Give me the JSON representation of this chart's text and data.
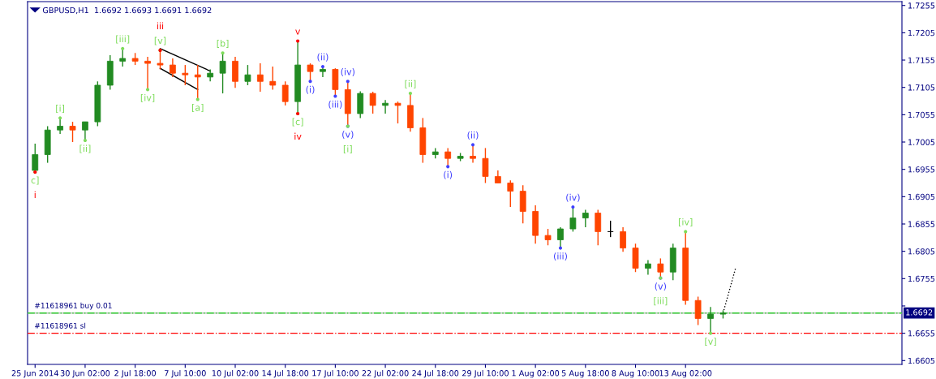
{
  "chart_data": {
    "type": "candlestick",
    "title": "GBPUSD,H1  1.6692 1.6693 1.6691 1.6692",
    "categories": [
      "25 Jun 2014",
      null,
      null,
      null,
      "30 Jun 02:00",
      null,
      null,
      null,
      "2 Jul 18:00",
      null,
      null,
      null,
      "7 Jul 10:00",
      null,
      null,
      null,
      "10 Jul 02:00",
      null,
      null,
      null,
      "14 Jul 18:00",
      null,
      null,
      null,
      "17 Jul 10:00",
      null,
      null,
      null,
      "22 Jul 02:00",
      null,
      null,
      null,
      "24 Jul 18:00",
      null,
      null,
      null,
      "29 Jul 10:00",
      null,
      null,
      null,
      "1 Aug 02:00",
      null,
      null,
      null,
      "5 Aug 18:00",
      null,
      null,
      null,
      "8 Aug 10:00",
      null,
      null,
      null,
      "13 Aug 02:00",
      null,
      null,
      null,
      null,
      null,
      null,
      null,
      null,
      null,
      null,
      null,
      null,
      null,
      null,
      null,
      null,
      null
    ],
    "ohlc": [
      [
        1.6953,
        1.7002,
        1.695,
        1.6982
      ],
      [
        1.6982,
        1.7034,
        1.6967,
        1.7027
      ],
      [
        1.7027,
        1.7049,
        1.702,
        1.7034
      ],
      [
        1.7034,
        1.7042,
        1.7005,
        1.7027
      ],
      [
        1.7027,
        1.7042,
        1.7008,
        1.7042
      ],
      [
        1.7042,
        1.7116,
        1.7034,
        1.7109
      ],
      [
        1.7109,
        1.7164,
        1.7101,
        1.7153
      ],
      [
        1.7153,
        1.7176,
        1.7143,
        1.7158
      ],
      [
        1.7158,
        1.7168,
        1.7146,
        1.7153
      ],
      [
        1.7153,
        1.7161,
        1.7101,
        1.7149
      ],
      [
        1.7149,
        1.7173,
        1.7138,
        1.7146
      ],
      [
        1.7146,
        1.7158,
        1.7124,
        1.7131
      ],
      [
        1.7131,
        1.7146,
        1.7109,
        1.7128
      ],
      [
        1.7128,
        1.7146,
        1.7083,
        1.7124
      ],
      [
        1.7124,
        1.7138,
        1.7116,
        1.7131
      ],
      [
        1.7131,
        1.7168,
        1.7094,
        1.7153
      ],
      [
        1.7153,
        1.7161,
        1.7104,
        1.7116
      ],
      [
        1.7116,
        1.7146,
        1.7109,
        1.7128
      ],
      [
        1.7128,
        1.7149,
        1.7097,
        1.7116
      ],
      [
        1.7116,
        1.7143,
        1.7101,
        1.7109
      ],
      [
        1.7109,
        1.7116,
        1.7072,
        1.7079
      ],
      [
        1.7079,
        1.719,
        1.7057,
        1.7146
      ],
      [
        1.7146,
        1.7149,
        1.7116,
        1.7134
      ],
      [
        1.7134,
        1.7143,
        1.7124,
        1.7138
      ],
      [
        1.7138,
        1.714,
        1.7089,
        1.7101
      ],
      [
        1.7101,
        1.7116,
        1.7034,
        1.7057
      ],
      [
        1.7057,
        1.7098,
        1.7049,
        1.7094
      ],
      [
        1.7094,
        1.7097,
        1.7057,
        1.7072
      ],
      [
        1.7072,
        1.7082,
        1.7057,
        1.7076
      ],
      [
        1.7076,
        1.7079,
        1.7039,
        1.7072
      ],
      [
        1.7072,
        1.7094,
        1.7024,
        1.7031
      ],
      [
        1.7031,
        1.7049,
        1.6967,
        1.6982
      ],
      [
        1.6982,
        1.6994,
        1.6975,
        1.6987
      ],
      [
        1.6987,
        1.6994,
        1.696,
        1.6975
      ],
      [
        1.6975,
        1.6985,
        1.697,
        1.6979
      ],
      [
        1.6979,
        1.7,
        1.6967,
        1.6975
      ],
      [
        1.6975,
        1.6994,
        1.693,
        1.6942
      ],
      [
        1.6942,
        1.6953,
        1.693,
        1.693
      ],
      [
        1.693,
        1.6935,
        1.6886,
        1.6915
      ],
      [
        1.6915,
        1.6926,
        1.6856,
        1.6878
      ],
      [
        1.6878,
        1.6889,
        1.6819,
        1.6834
      ],
      [
        1.6834,
        1.6846,
        1.6816,
        1.6826
      ],
      [
        1.6826,
        1.6849,
        1.6811,
        1.6846
      ],
      [
        1.6846,
        1.6886,
        1.6841,
        1.6866
      ],
      [
        1.6866,
        1.6881,
        1.6849,
        1.6875
      ],
      [
        1.6875,
        1.6881,
        1.6816,
        1.6841
      ],
      [
        1.6841,
        1.6861,
        1.6831,
        1.6841
      ],
      [
        1.6841,
        1.6849,
        1.6804,
        1.6811
      ],
      [
        1.6811,
        1.6819,
        1.6767,
        1.6774
      ],
      [
        1.6774,
        1.6789,
        1.6762,
        1.6782
      ],
      [
        1.6782,
        1.6792,
        1.6756,
        1.6767
      ],
      [
        1.6767,
        1.6819,
        1.6752,
        1.6811
      ],
      [
        1.6811,
        1.6841,
        1.6707,
        1.6715
      ],
      [
        1.6715,
        1.6722,
        1.667,
        1.6682
      ],
      [
        1.6682,
        1.6703,
        1.6655,
        1.669
      ],
      [
        1.669,
        1.6697,
        1.6682,
        1.6692
      ],
      null,
      null,
      null,
      null,
      null,
      null,
      null,
      null,
      null,
      null,
      null,
      null,
      null,
      null
    ],
    "colors": [
      "#228b22",
      "#228b22",
      "#228b22",
      "#ff4500",
      "#228b22",
      "#228b22",
      "#228b22",
      "#228b22",
      "#ff4500",
      "#ff4500",
      "#ff4500",
      "#ff4500",
      "#ff4500",
      "#ff4500",
      "#228b22",
      "#228b22",
      "#ff4500",
      "#228b22",
      "#ff4500",
      "#ff4500",
      "#ff4500",
      "#228b22",
      "#ff4500",
      "#228b22",
      "#ff4500",
      "#ff4500",
      "#228b22",
      "#ff4500",
      "#228b22",
      "#ff4500",
      "#ff4500",
      "#ff4500",
      "#228b22",
      "#ff4500",
      "#228b22",
      "#ff4500",
      "#ff4500",
      "#ff4500",
      "#ff4500",
      "#ff4500",
      "#ff4500",
      "#ff4500",
      "#228b22",
      "#228b22",
      "#228b22",
      "#ff4500",
      "#000000",
      "#ff4500",
      "#ff4500",
      "#228b22",
      "#ff4500",
      "#228b22",
      "#ff4500",
      "#ff4500",
      "#228b22",
      "#228b22",
      null,
      null,
      null,
      null,
      null,
      null,
      null,
      null,
      null,
      null,
      null,
      null,
      null,
      null
    ],
    "series": [
      {
        "type": "line",
        "color": "#000000",
        "line_style": "dotted",
        "values": [
          null,
          null,
          null,
          null,
          null,
          null,
          null,
          null,
          null,
          null,
          null,
          null,
          null,
          null,
          null,
          null,
          null,
          null,
          null,
          null,
          null,
          null,
          null,
          null,
          null,
          null,
          null,
          null,
          null,
          null,
          null,
          null,
          null,
          null,
          null,
          null,
          null,
          null,
          null,
          null,
          null,
          null,
          null,
          null,
          null,
          null,
          null,
          null,
          null,
          null,
          null,
          null,
          null,
          null,
          null,
          1.6692,
          1.6774,
          null,
          null,
          null,
          null,
          null,
          null,
          null,
          null,
          null,
          null,
          null,
          null,
          null
        ]
      },
      {
        "type": "line",
        "color": "#000000",
        "line_style": "solid",
        "values": [
          null,
          null,
          null,
          null,
          null,
          null,
          null,
          null,
          null,
          null,
          1.7176,
          null,
          null,
          null,
          1.7135,
          null,
          null,
          null,
          null,
          null,
          null,
          null,
          null,
          null,
          null,
          null,
          null,
          null,
          null,
          null,
          null,
          null,
          null,
          null,
          null,
          null,
          null,
          null,
          null,
          null,
          null,
          null,
          null,
          null,
          null,
          null,
          null,
          null,
          null,
          null,
          null,
          null,
          null,
          null,
          null,
          null,
          null,
          null,
          null,
          null,
          null,
          null,
          null,
          null,
          null,
          null,
          null,
          null,
          null,
          null
        ]
      },
      {
        "type": "line",
        "color": "#000000",
        "line_style": "solid",
        "values": [
          null,
          null,
          null,
          null,
          null,
          null,
          null,
          null,
          null,
          null,
          1.714,
          null,
          null,
          1.7101,
          null,
          null,
          null,
          null,
          null,
          null,
          null,
          null,
          null,
          null,
          null,
          null,
          null,
          null,
          null,
          null,
          null,
          null,
          null,
          null,
          null,
          null,
          null,
          null,
          null,
          null,
          null,
          null,
          null,
          null,
          null,
          null,
          null,
          null,
          null,
          null,
          null,
          null,
          null,
          null,
          null,
          null,
          null,
          null,
          null,
          null,
          null,
          null,
          null,
          null,
          null,
          null,
          null,
          null,
          null,
          null
        ]
      },
      {
        "type": "scatter",
        "marker": "circle",
        "color": "#4040ff",
        "values": [
          null,
          null,
          null,
          null,
          null,
          null,
          null,
          null,
          null,
          null,
          null,
          null,
          null,
          null,
          null,
          null,
          null,
          null,
          null,
          null,
          null,
          null,
          1.7116,
          null,
          1.7089,
          1.7034,
          null,
          null,
          null,
          null,
          null,
          null,
          null,
          1.696,
          null,
          null,
          null,
          null,
          null,
          null,
          null,
          null,
          1.6811,
          null,
          null,
          null,
          null,
          null,
          null,
          null,
          1.6756,
          null,
          null,
          null,
          null,
          null,
          null,
          null,
          null,
          null,
          null,
          null,
          null,
          null,
          null,
          null,
          null,
          null,
          null,
          null
        ],
        "value_labels": [
          null,
          null,
          null,
          null,
          null,
          null,
          null,
          null,
          null,
          null,
          null,
          null,
          null,
          null,
          null,
          null,
          null,
          null,
          null,
          null,
          null,
          null,
          "(i)",
          null,
          "(iii)",
          "(v)",
          null,
          null,
          null,
          null,
          null,
          null,
          null,
          "(i)",
          null,
          null,
          null,
          null,
          null,
          null,
          null,
          null,
          "(iii)",
          null,
          null,
          null,
          null,
          null,
          null,
          null,
          "(v)",
          null,
          null,
          null,
          null,
          null,
          null,
          null,
          null,
          null,
          null,
          null,
          null,
          null,
          null,
          null,
          null,
          null,
          null,
          null
        ]
      },
      {
        "type": "scatter",
        "marker": "circle",
        "color": "#4040ff",
        "values": [
          null,
          null,
          null,
          null,
          null,
          null,
          null,
          null,
          null,
          null,
          null,
          null,
          null,
          null,
          null,
          null,
          null,
          null,
          null,
          null,
          null,
          null,
          null,
          1.7143,
          null,
          1.7116,
          null,
          null,
          null,
          null,
          null,
          null,
          null,
          null,
          null,
          1.7,
          null,
          null,
          null,
          null,
          null,
          null,
          null,
          1.6886,
          null,
          null,
          null,
          null,
          null,
          null,
          null,
          null,
          null,
          null,
          null,
          null,
          null,
          null,
          null,
          null,
          null,
          null,
          null,
          null,
          null,
          null,
          null,
          null,
          null,
          null
        ],
        "value_labels": [
          null,
          null,
          null,
          null,
          null,
          null,
          null,
          null,
          null,
          null,
          null,
          null,
          null,
          null,
          null,
          null,
          null,
          null,
          null,
          null,
          null,
          null,
          null,
          "(ii)",
          null,
          "(iv)",
          null,
          null,
          null,
          null,
          null,
          null,
          null,
          null,
          null,
          "(ii)",
          null,
          null,
          null,
          null,
          null,
          null,
          null,
          "(iv)",
          null,
          null,
          null,
          null,
          null,
          null,
          null,
          null,
          null,
          null,
          null,
          null,
          null,
          null,
          null,
          null,
          null,
          null,
          null,
          null,
          null,
          null,
          null,
          null,
          null,
          null
        ]
      },
      {
        "type": "scatter",
        "marker": "circle",
        "color": "#7ddc5a",
        "values": [
          1.695,
          null,
          1.7049,
          null,
          1.7008,
          null,
          null,
          1.7176,
          null,
          1.7101,
          1.7173,
          null,
          null,
          1.7083,
          null,
          1.7168,
          null,
          null,
          null,
          null,
          null,
          1.7057,
          null,
          null,
          null,
          1.7034,
          null,
          null,
          null,
          null,
          1.7094,
          null,
          null,
          null,
          null,
          null,
          null,
          null,
          null,
          null,
          null,
          null,
          null,
          null,
          null,
          null,
          null,
          null,
          null,
          null,
          1.6756,
          null,
          1.6841,
          null,
          1.6655,
          null,
          null,
          null,
          null,
          null,
          null,
          null,
          null,
          null,
          null,
          null,
          null,
          null,
          null,
          null
        ],
        "value_labels": [
          "c]",
          null,
          "[i]",
          null,
          "[ii]",
          null,
          null,
          "[iii]",
          null,
          "[iv]",
          "[v]",
          null,
          null,
          "[a]",
          null,
          "[b]",
          null,
          null,
          null,
          null,
          null,
          "[c]",
          null,
          null,
          null,
          "[i]",
          null,
          null,
          null,
          null,
          "[ii]",
          null,
          null,
          null,
          null,
          null,
          null,
          null,
          null,
          null,
          null,
          null,
          null,
          null,
          null,
          null,
          null,
          null,
          null,
          null,
          "[iii]",
          null,
          "[iv]",
          null,
          "[v]",
          null,
          null,
          null,
          null,
          null,
          null,
          null,
          null,
          null,
          null,
          null,
          null,
          null,
          null,
          null
        ]
      },
      {
        "type": "scatter",
        "marker": "circle",
        "color": "#ff0000",
        "values": [
          null,
          null,
          null,
          null,
          null,
          null,
          null,
          null,
          null,
          null,
          1.7173,
          null,
          null,
          null,
          null,
          null,
          null,
          null,
          null,
          null,
          null,
          1.719,
          null,
          null,
          null,
          null,
          null,
          null,
          null,
          null,
          null,
          null,
          null,
          null,
          null,
          null,
          null,
          null,
          null,
          null,
          null,
          null,
          null,
          null,
          null,
          null,
          null,
          null,
          null,
          null,
          null,
          null,
          null,
          null,
          null,
          null,
          null,
          null,
          null,
          null,
          null,
          null,
          null,
          null,
          null,
          null,
          null,
          null,
          null,
          null
        ],
        "value_labels": [
          null,
          null,
          null,
          null,
          null,
          null,
          null,
          null,
          null,
          null,
          "iii",
          null,
          null,
          null,
          null,
          null,
          null,
          null,
          null,
          null,
          null,
          "v",
          null,
          null,
          null,
          null,
          null,
          null,
          null,
          null,
          null,
          null,
          null,
          null,
          null,
          null,
          null,
          null,
          null,
          null,
          null,
          null,
          null,
          null,
          null,
          null,
          null,
          null,
          null,
          null,
          null,
          null,
          null,
          null,
          null,
          null,
          null,
          null,
          null,
          null,
          null,
          null,
          null,
          null,
          null,
          null,
          null,
          null,
          null,
          null
        ]
      },
      {
        "type": "scatter",
        "marker": "circle",
        "color": "#ff0000",
        "values": [
          1.695,
          null,
          null,
          null,
          null,
          null,
          null,
          null,
          null,
          null,
          null,
          null,
          null,
          null,
          null,
          null,
          null,
          null,
          null,
          null,
          null,
          1.7057,
          null,
          null,
          null,
          null,
          null,
          null,
          null,
          null,
          null,
          null,
          null,
          null,
          null,
          null,
          null,
          null,
          null,
          null,
          null,
          null,
          null,
          null,
          null,
          null,
          null,
          null,
          null,
          null,
          null,
          null,
          null,
          null,
          null,
          null,
          null,
          null,
          null,
          null,
          null,
          null,
          null,
          null,
          null,
          null,
          null,
          null,
          null,
          null
        ],
        "value_labels": [
          "i",
          null,
          null,
          null,
          null,
          null,
          null,
          null,
          null,
          null,
          null,
          null,
          null,
          null,
          null,
          null,
          null,
          null,
          null,
          null,
          null,
          "iv",
          null,
          null,
          null,
          null,
          null,
          null,
          null,
          null,
          null,
          null,
          null,
          null,
          null,
          null,
          null,
          null,
          null,
          null,
          null,
          null,
          null,
          null,
          null,
          null,
          null,
          null,
          null,
          null,
          null,
          null,
          null,
          null,
          null,
          null,
          null,
          null,
          null,
          null,
          null,
          null,
          null,
          null,
          null,
          null,
          null,
          null,
          null,
          null
        ]
      }
    ],
    "ylim": [
      1.6598,
      1.7262
    ],
    "yticks": [
      1.7255,
      1.7205,
      1.7155,
      1.7105,
      1.7055,
      1.7005,
      1.6955,
      1.6905,
      1.6855,
      1.6805,
      1.6755,
      {
        "value": 1.6705,
        "label": null
      },
      1.6655,
      1.6605
    ],
    "ref_lines": [
      {
        "axis": "y",
        "value": 1.6692,
        "label": "1.6692",
        "color": "#c0c0c0",
        "line_style": "solid"
      },
      {
        "axis": "y",
        "value": 1.6692,
        "label": "#11618961 buy 0.01",
        "color": "#32cd32",
        "line_style": "dashdot"
      },
      {
        "axis": "y",
        "value": 1.6655,
        "label": "#11618961 sl",
        "color": "#ff0000",
        "line_style": "dashdot"
      }
    ]
  }
}
